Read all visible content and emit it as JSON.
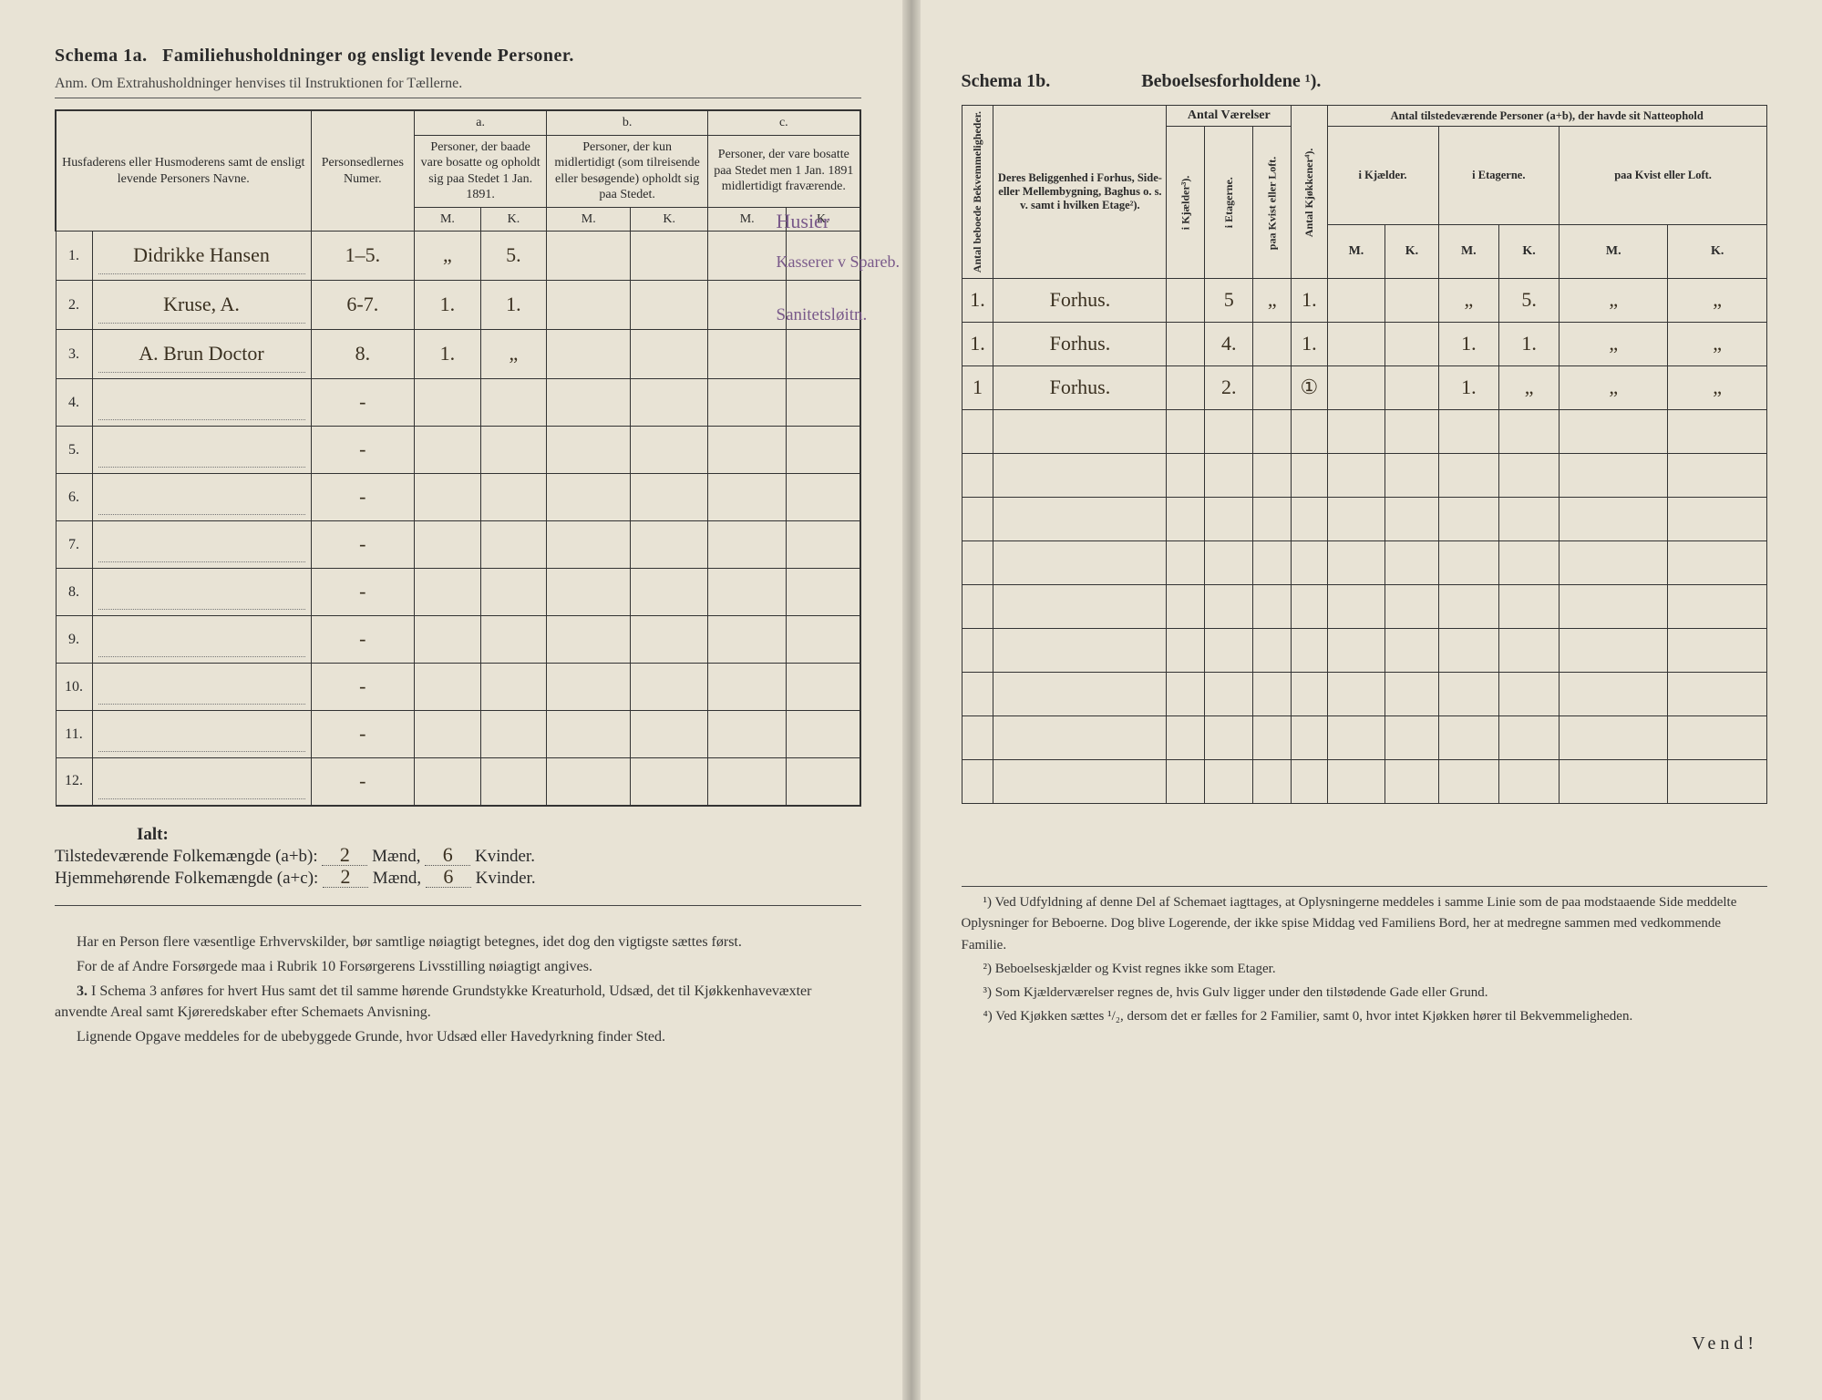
{
  "colors": {
    "paper": "#e8e3d5",
    "ink": "#2a2a2a",
    "hand": "#3a3020",
    "hand_purple": "#7a5a8a",
    "rule": "#333333"
  },
  "left": {
    "title_a": "Schema 1a.",
    "title_b": "Familiehusholdninger og ensligt levende Personer.",
    "subtitle": "Anm. Om Extrahusholdninger henvises til Instruktionen for Tællerne.",
    "head_names": "Husfaderens eller Husmoderens samt de ensligt levende Personers Navne.",
    "head_nums": "Personsedlernes Numer.",
    "col_a_label": "a.",
    "col_a_text": "Personer, der baade vare bosatte og opholdt sig paa Stedet 1 Jan. 1891.",
    "col_b_label": "b.",
    "col_b_text": "Personer, der kun midlertidigt (som tilreisende eller besøgende) opholdt sig paa Stedet.",
    "col_c_label": "c.",
    "col_c_text": "Personer, der vare bosatte paa Stedet men 1 Jan. 1891 midlertidigt fraværende.",
    "mk_m": "M.",
    "mk_k": "K.",
    "rows": [
      {
        "n": "1.",
        "name": "Didrikke Hansen",
        "nums": "1–5.",
        "aM": "„",
        "aK": "5.",
        "bM": "",
        "bK": "",
        "cM": "",
        "cK": "",
        "note": "Husier"
      },
      {
        "n": "2.",
        "name": "Kruse, A.",
        "nums": "6-7.",
        "aM": "1.",
        "aK": "1.",
        "bM": "",
        "bK": "",
        "cM": "",
        "cK": "",
        "note": "Kasserer v Spareb."
      },
      {
        "n": "3.",
        "name": "A. Brun Doctor",
        "nums": "8.",
        "aM": "1.",
        "aK": "„",
        "bM": "",
        "bK": "",
        "cM": "",
        "cK": "",
        "note": "Sanitetsløitn."
      },
      {
        "n": "4.",
        "name": "",
        "nums": "-"
      },
      {
        "n": "5.",
        "name": "",
        "nums": "-"
      },
      {
        "n": "6.",
        "name": "",
        "nums": "-"
      },
      {
        "n": "7.",
        "name": "",
        "nums": "-"
      },
      {
        "n": "8.",
        "name": "",
        "nums": "-"
      },
      {
        "n": "9.",
        "name": "",
        "nums": "-"
      },
      {
        "n": "10.",
        "name": "",
        "nums": "-"
      },
      {
        "n": "11.",
        "name": "",
        "nums": "-"
      },
      {
        "n": "12.",
        "name": "",
        "nums": "-"
      }
    ],
    "ialt_label": "Ialt:",
    "tilst_label": "Tilstedeværende Folkemængde (a+b): ",
    "hjemme_label": "Hjemmehørende Folkemængde (a+c): ",
    "maend": "Mænd,",
    "kvinder": "Kvinder.",
    "tilst_m": "2",
    "tilst_k": "6",
    "hjemme_m": "2",
    "hjemme_k": "6",
    "notes": [
      "Har en Person flere væsentlige Erhvervskilder, bør samtlige nøiagtigt betegnes, idet dog den vigtigste sættes først.",
      "For de af Andre Forsørgede maa i Rubrik 10 Forsørgerens Livsstilling nøiagtigt angives.",
      "I Schema 3 anføres for hvert Hus samt det til samme hørende Grundstykke Kreaturhold, Udsæd, det til Kjøkkenhavevæxter anvendte Areal samt Kjøreredskaber efter Schemaets Anvisning.",
      "Lignende Opgave meddeles for de ubebyggede Grunde, hvor Udsæd eller Havedyrkning finder Sted."
    ],
    "note3_prefix": "3."
  },
  "right": {
    "title_a": "Schema 1b.",
    "title_b": "Beboelsesforholdene ¹).",
    "head_antal_bek": "Antal beboede Bekvemmeligheder.",
    "head_beligg": "Deres Beliggenhed i Forhus, Side- eller Mellembygning, Baghus o. s. v. samt i hvilken Etage²).",
    "head_vaer": "Antal Værelser",
    "sub_kj": "i Kjælder³).",
    "sub_et": "i Etagerne.",
    "sub_kv": "paa Kvist eller Loft.",
    "head_kjok": "Antal Kjøkkener⁴).",
    "head_natte": "Antal tilstedeværende Personer (a+b), der havde sit Natteophold",
    "natte_kj": "i Kjælder.",
    "natte_et": "i Etagerne.",
    "natte_kv": "paa Kvist eller Loft.",
    "mk_m": "M.",
    "mk_k": "K.",
    "rows": [
      {
        "bek": "1.",
        "bel": "Forhus.",
        "kj": "",
        "et": "5",
        "kv": "„",
        "kjok": "1.",
        "nkjM": "",
        "nkjK": "",
        "netM": "„",
        "netK": "5.",
        "nkvM": "„",
        "nkvK": "„"
      },
      {
        "bek": "1.",
        "bel": "Forhus.",
        "kj": "",
        "et": "4.",
        "kv": "",
        "kjok": "1.",
        "nkjM": "",
        "nkjK": "",
        "netM": "1.",
        "netK": "1.",
        "nkvM": "„",
        "nkvK": "„"
      },
      {
        "bek": "1",
        "bel": "Forhus.",
        "kj": "",
        "et": "2.",
        "kv": "",
        "kjok": "①",
        "nkjM": "",
        "nkjK": "",
        "netM": "1.",
        "netK": "„",
        "nkvM": "„",
        "nkvK": "„"
      },
      {},
      {},
      {},
      {},
      {},
      {},
      {},
      {},
      {}
    ],
    "footnotes": [
      "¹) Ved Udfyldning af denne Del af Schemaet iagttages, at Oplysningerne meddeles i samme Linie som de paa modstaaende Side meddelte Oplysninger for Beboerne. Dog blive Logerende, der ikke spise Middag ved Familiens Bord, her at medregne sammen med vedkommende Familie.",
      "²) Beboelseskjælder og Kvist regnes ikke som Etager.",
      "³) Som Kjælderværelser regnes de, hvis Gulv ligger under den tilstødende Gade eller Grund.",
      "⁴) Ved Kjøkken sættes ¹/₂, dersom det er fælles for 2 Familier, samt 0, hvor intet Kjøkken hører til Bekvemmeligheden."
    ],
    "vend": "Vend!"
  }
}
